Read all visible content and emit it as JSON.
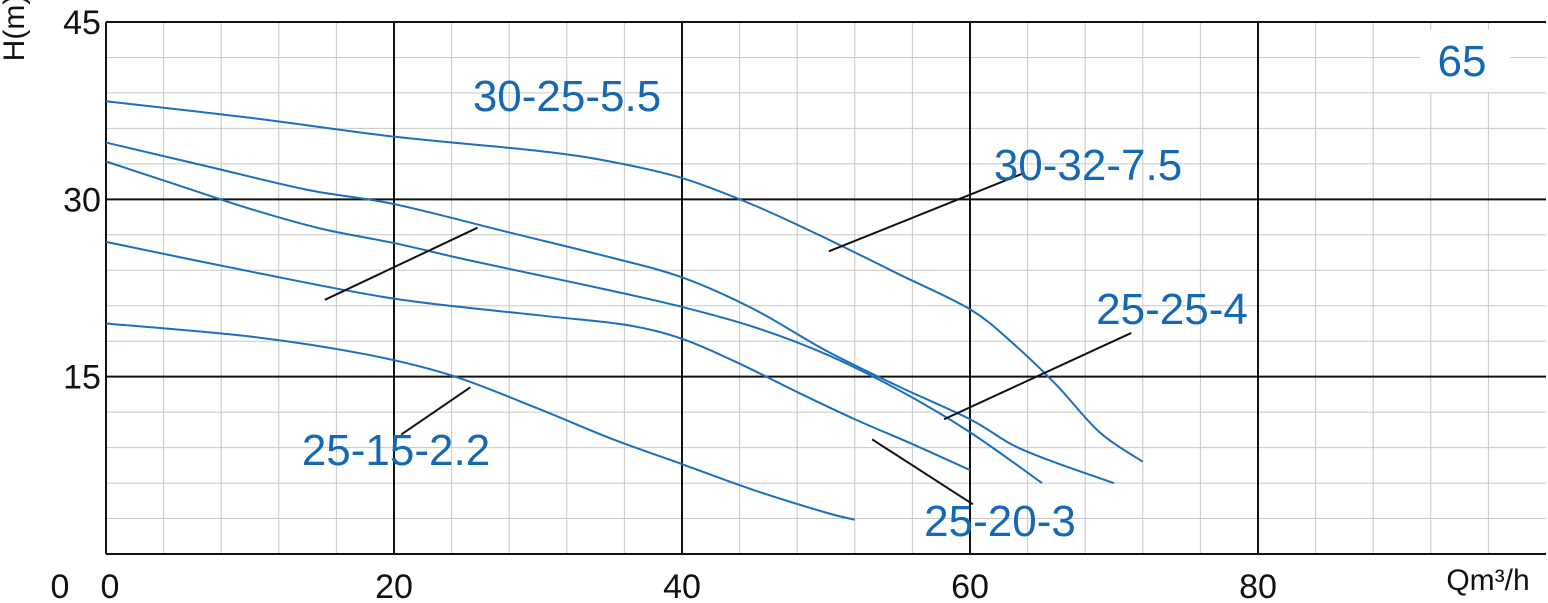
{
  "chart_data": {
    "type": "line",
    "model_tag": "65",
    "ylabel": "H(m)",
    "xlabel": "Qm³/h",
    "xlim": [
      0,
      100
    ],
    "ylim": [
      0,
      45
    ],
    "x_ticks": [
      {
        "value": 0,
        "label": "0"
      },
      {
        "value": 20,
        "label": "20"
      },
      {
        "value": 40,
        "label": "40"
      },
      {
        "value": 60,
        "label": "60"
      },
      {
        "value": 80,
        "label": "80"
      }
    ],
    "y_ticks": [
      {
        "value": 0,
        "label": "0"
      },
      {
        "value": 15,
        "label": "15"
      },
      {
        "value": 30,
        "label": "30"
      },
      {
        "value": 45,
        "label": "45"
      }
    ],
    "x_minor_step": 4,
    "y_minor_step": 3,
    "major_grid_x": [
      20,
      40,
      60,
      80
    ],
    "major_grid_y": [
      15,
      30
    ],
    "colors": {
      "curve": "#1a6fbe",
      "label": "#1468b4",
      "grid_major": "#111111",
      "grid_minor": "#c8c8c8"
    },
    "series": [
      {
        "name": "30-32-7.5",
        "x": [
          0,
          10,
          20,
          30,
          35,
          40,
          45,
          50,
          55,
          60,
          63,
          66,
          69,
          72
        ],
        "y": [
          38.3,
          36.9,
          35.3,
          34.1,
          33.2,
          31.8,
          29.5,
          26.7,
          23.7,
          20.7,
          17.8,
          14.3,
          10.3,
          7.8
        ]
      },
      {
        "name": "30-25-5.5",
        "x": [
          0,
          7,
          14,
          20,
          28,
          35,
          40,
          45,
          50,
          55,
          60,
          63,
          66,
          70
        ],
        "y": [
          34.8,
          32.8,
          30.8,
          29.6,
          27.2,
          25.1,
          23.4,
          20.7,
          17.2,
          14.2,
          11.4,
          9.2,
          7.7,
          6.0
        ]
      },
      {
        "name": "25-25-4",
        "x": [
          0,
          5,
          10,
          15,
          20,
          25,
          30,
          35,
          40,
          45,
          50,
          55,
          60,
          65
        ],
        "y": [
          33.2,
          31.2,
          29.2,
          27.5,
          26.3,
          24.9,
          23.6,
          22.3,
          20.9,
          19.2,
          16.9,
          13.9,
          10.3,
          6.0
        ]
      },
      {
        "name": "25-20-3",
        "x": [
          0,
          10,
          20,
          30,
          36,
          40,
          44,
          48,
          52,
          56,
          60
        ],
        "y": [
          26.4,
          23.9,
          21.6,
          20.2,
          19.4,
          18.2,
          16.1,
          13.7,
          11.4,
          9.3,
          7.1
        ]
      },
      {
        "name": "25-15-2.2",
        "x": [
          0,
          10,
          18,
          24,
          30,
          35,
          40,
          45,
          50,
          52
        ],
        "y": [
          19.5,
          18.4,
          16.9,
          15.1,
          12.3,
          9.8,
          7.6,
          5.4,
          3.5,
          2.9
        ]
      }
    ],
    "annotations": [
      {
        "text": "30-25-5.5",
        "leader_from": [
          25.8,
          27.6
        ],
        "leader_to": [
          15.2,
          21.5
        ]
      },
      {
        "text": "30-32-7.5",
        "leader_from": [
          63.7,
          32.2
        ],
        "leader_to": [
          50.2,
          25.6
        ]
      },
      {
        "text": "25-25-4",
        "leader_from": [
          71.2,
          18.7
        ],
        "leader_to": [
          58.2,
          11.4
        ]
      },
      {
        "text": "25-20-3",
        "leader_from": [
          53.2,
          9.7
        ],
        "leader_to": [
          60.2,
          4.2
        ]
      },
      {
        "text": "25-15-2.2",
        "leader_from": [
          25.3,
          14.1
        ],
        "leader_to": [
          20.5,
          10.1
        ]
      }
    ]
  }
}
